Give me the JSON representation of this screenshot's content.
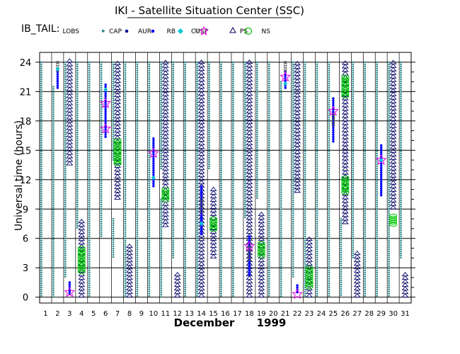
{
  "chart_data": {
    "type": "scatter",
    "title": "IKI - Satellite Situation Center (SSC)",
    "satellite": "IB_TAIL:",
    "xlabel": "December      1999",
    "ylabel": "Universal time (hours)",
    "xlim": [
      0.5,
      31.5
    ],
    "ylim": [
      -0.6,
      25
    ],
    "x_ticks": [
      1,
      2,
      3,
      4,
      5,
      6,
      7,
      8,
      9,
      10,
      11,
      12,
      13,
      14,
      15,
      16,
      17,
      18,
      19,
      20,
      21,
      22,
      23,
      24,
      25,
      26,
      27,
      28,
      29,
      30,
      31
    ],
    "y_ticks": [
      0,
      3,
      6,
      9,
      12,
      15,
      18,
      21,
      24
    ],
    "grid": true,
    "legend": {
      "position": "top",
      "entries": [
        {
          "key": "LOBS",
          "label": "LOBS"
        },
        {
          "key": "CAP",
          "label": "CAP"
        },
        {
          "key": "AUR",
          "label": "AUR"
        },
        {
          "key": "RB",
          "label": "RB"
        },
        {
          "key": "CUSP",
          "label": "CUSP"
        },
        {
          "key": "PS",
          "label": "PS"
        },
        {
          "key": "NS",
          "label": "NS"
        }
      ]
    },
    "colors": {
      "LOBS": "#2a8a8a",
      "CAP": "#0a0a9a",
      "AUR": "#0000ff",
      "RB": "#00c8d8",
      "CUSP": "#555555",
      "PS": "#e000e0",
      "NS": "#000066",
      "NSL": "#00c800"
    },
    "series": {
      "LOBS": [
        [
          1,
          0,
          24
        ],
        [
          2,
          0,
          21.5
        ],
        [
          3,
          2,
          24
        ],
        [
          4,
          7,
          24
        ],
        [
          5,
          0,
          24
        ],
        [
          6,
          6,
          24
        ],
        [
          7,
          4,
          8
        ],
        [
          7,
          14,
          24
        ],
        [
          8,
          0,
          24
        ],
        [
          9,
          0,
          24
        ],
        [
          10,
          0,
          24
        ],
        [
          11,
          0,
          10
        ],
        [
          11,
          13,
          24
        ],
        [
          12,
          4,
          24
        ],
        [
          13,
          0,
          24
        ],
        [
          14,
          0,
          24
        ],
        [
          15,
          13,
          24
        ],
        [
          16,
          0,
          24
        ],
        [
          17,
          0,
          24
        ],
        [
          18,
          8,
          24
        ],
        [
          19,
          10,
          24
        ],
        [
          20,
          0,
          24
        ],
        [
          21,
          0,
          22
        ],
        [
          22,
          2,
          24
        ],
        [
          23,
          0,
          24
        ],
        [
          24,
          0,
          24
        ],
        [
          25,
          0,
          24
        ],
        [
          26,
          0,
          8
        ],
        [
          27,
          4,
          24
        ],
        [
          28,
          0,
          24
        ],
        [
          29,
          0,
          24
        ],
        [
          30,
          0,
          24
        ],
        [
          31,
          4,
          24
        ]
      ],
      "CAP": [],
      "AUR": [
        [
          2,
          21.3,
          23
        ],
        [
          3,
          0.3,
          1.5
        ],
        [
          6,
          16.2,
          21.7
        ],
        [
          10,
          11.3,
          16.2
        ],
        [
          14,
          6.3,
          11.3
        ],
        [
          18,
          2.2,
          6.2
        ],
        [
          21,
          21.2,
          23
        ],
        [
          22,
          0.3,
          1.2
        ],
        [
          25,
          15.8,
          20.3
        ],
        [
          29,
          10.3,
          15.5
        ]
      ],
      "RB": [
        [
          2,
          23.3
        ],
        [
          6,
          21.2
        ],
        [
          10,
          12.2
        ],
        [
          14,
          7.5
        ],
        [
          21,
          21.8
        ],
        [
          29,
          14
        ]
      ],
      "CUSP": [
        [
          2,
          23,
          24
        ],
        [
          18,
          3.6,
          5.2
        ],
        [
          21,
          23,
          24
        ],
        [
          25,
          17.5,
          18.7
        ],
        [
          14,
          8.5,
          10
        ]
      ],
      "PS": [
        [
          3,
          0.5
        ],
        [
          6,
          17.2
        ],
        [
          6,
          19.8
        ],
        [
          10,
          14.7
        ],
        [
          18,
          5.2
        ],
        [
          21,
          22.5
        ],
        [
          22,
          0.3
        ],
        [
          25,
          19
        ],
        [
          29,
          14
        ]
      ],
      "NS": [
        [
          3,
          13.5,
          24
        ],
        [
          4,
          0,
          7.8
        ],
        [
          7,
          10,
          24
        ],
        [
          8,
          0,
          5.2
        ],
        [
          11,
          7.2,
          24
        ],
        [
          12,
          0,
          2.5
        ],
        [
          14,
          0,
          24
        ],
        [
          15,
          4,
          11
        ],
        [
          18,
          0,
          24
        ],
        [
          19,
          0,
          8.5
        ],
        [
          22,
          10.7,
          24
        ],
        [
          23,
          0,
          6
        ],
        [
          26,
          7.5,
          24
        ],
        [
          27,
          0,
          4.5
        ],
        [
          30,
          9,
          24
        ],
        [
          31,
          0,
          2.5
        ]
      ],
      "NSL": [
        [
          4,
          2.5,
          5
        ],
        [
          7,
          13.5,
          16
        ],
        [
          11,
          9.8,
          11
        ],
        [
          15,
          6.8,
          8
        ],
        [
          19,
          4,
          5.5
        ],
        [
          23,
          1,
          3
        ],
        [
          26,
          10.5,
          12.2
        ],
        [
          26,
          20.5,
          22.5
        ],
        [
          30,
          7.3,
          8.3
        ]
      ]
    }
  }
}
